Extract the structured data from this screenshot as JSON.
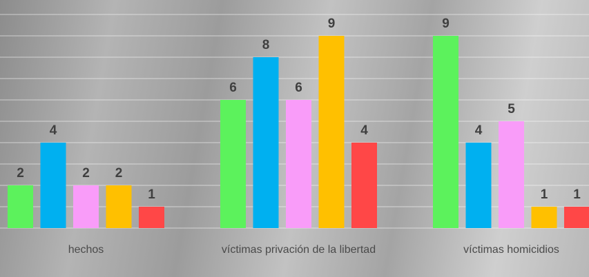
{
  "chart_data": {
    "type": "bar",
    "categories": [
      "hechos",
      "víctimas privación de la libertad",
      "víctimas homicidios"
    ],
    "series": [
      {
        "color": "#5cf25c",
        "values": [
          2,
          6,
          9
        ]
      },
      {
        "color": "#00b0f0",
        "values": [
          4,
          8,
          4
        ]
      },
      {
        "color": "#f99cf9",
        "values": [
          2,
          6,
          5
        ]
      },
      {
        "color": "#ffc000",
        "values": [
          2,
          9,
          1
        ]
      },
      {
        "color": "#ff4747",
        "values": [
          1,
          4,
          1
        ]
      }
    ],
    "ylim": [
      0,
      10
    ],
    "yticks": [
      0,
      1,
      2,
      3,
      4,
      5,
      6,
      7,
      8,
      9,
      10
    ],
    "grid": true
  }
}
